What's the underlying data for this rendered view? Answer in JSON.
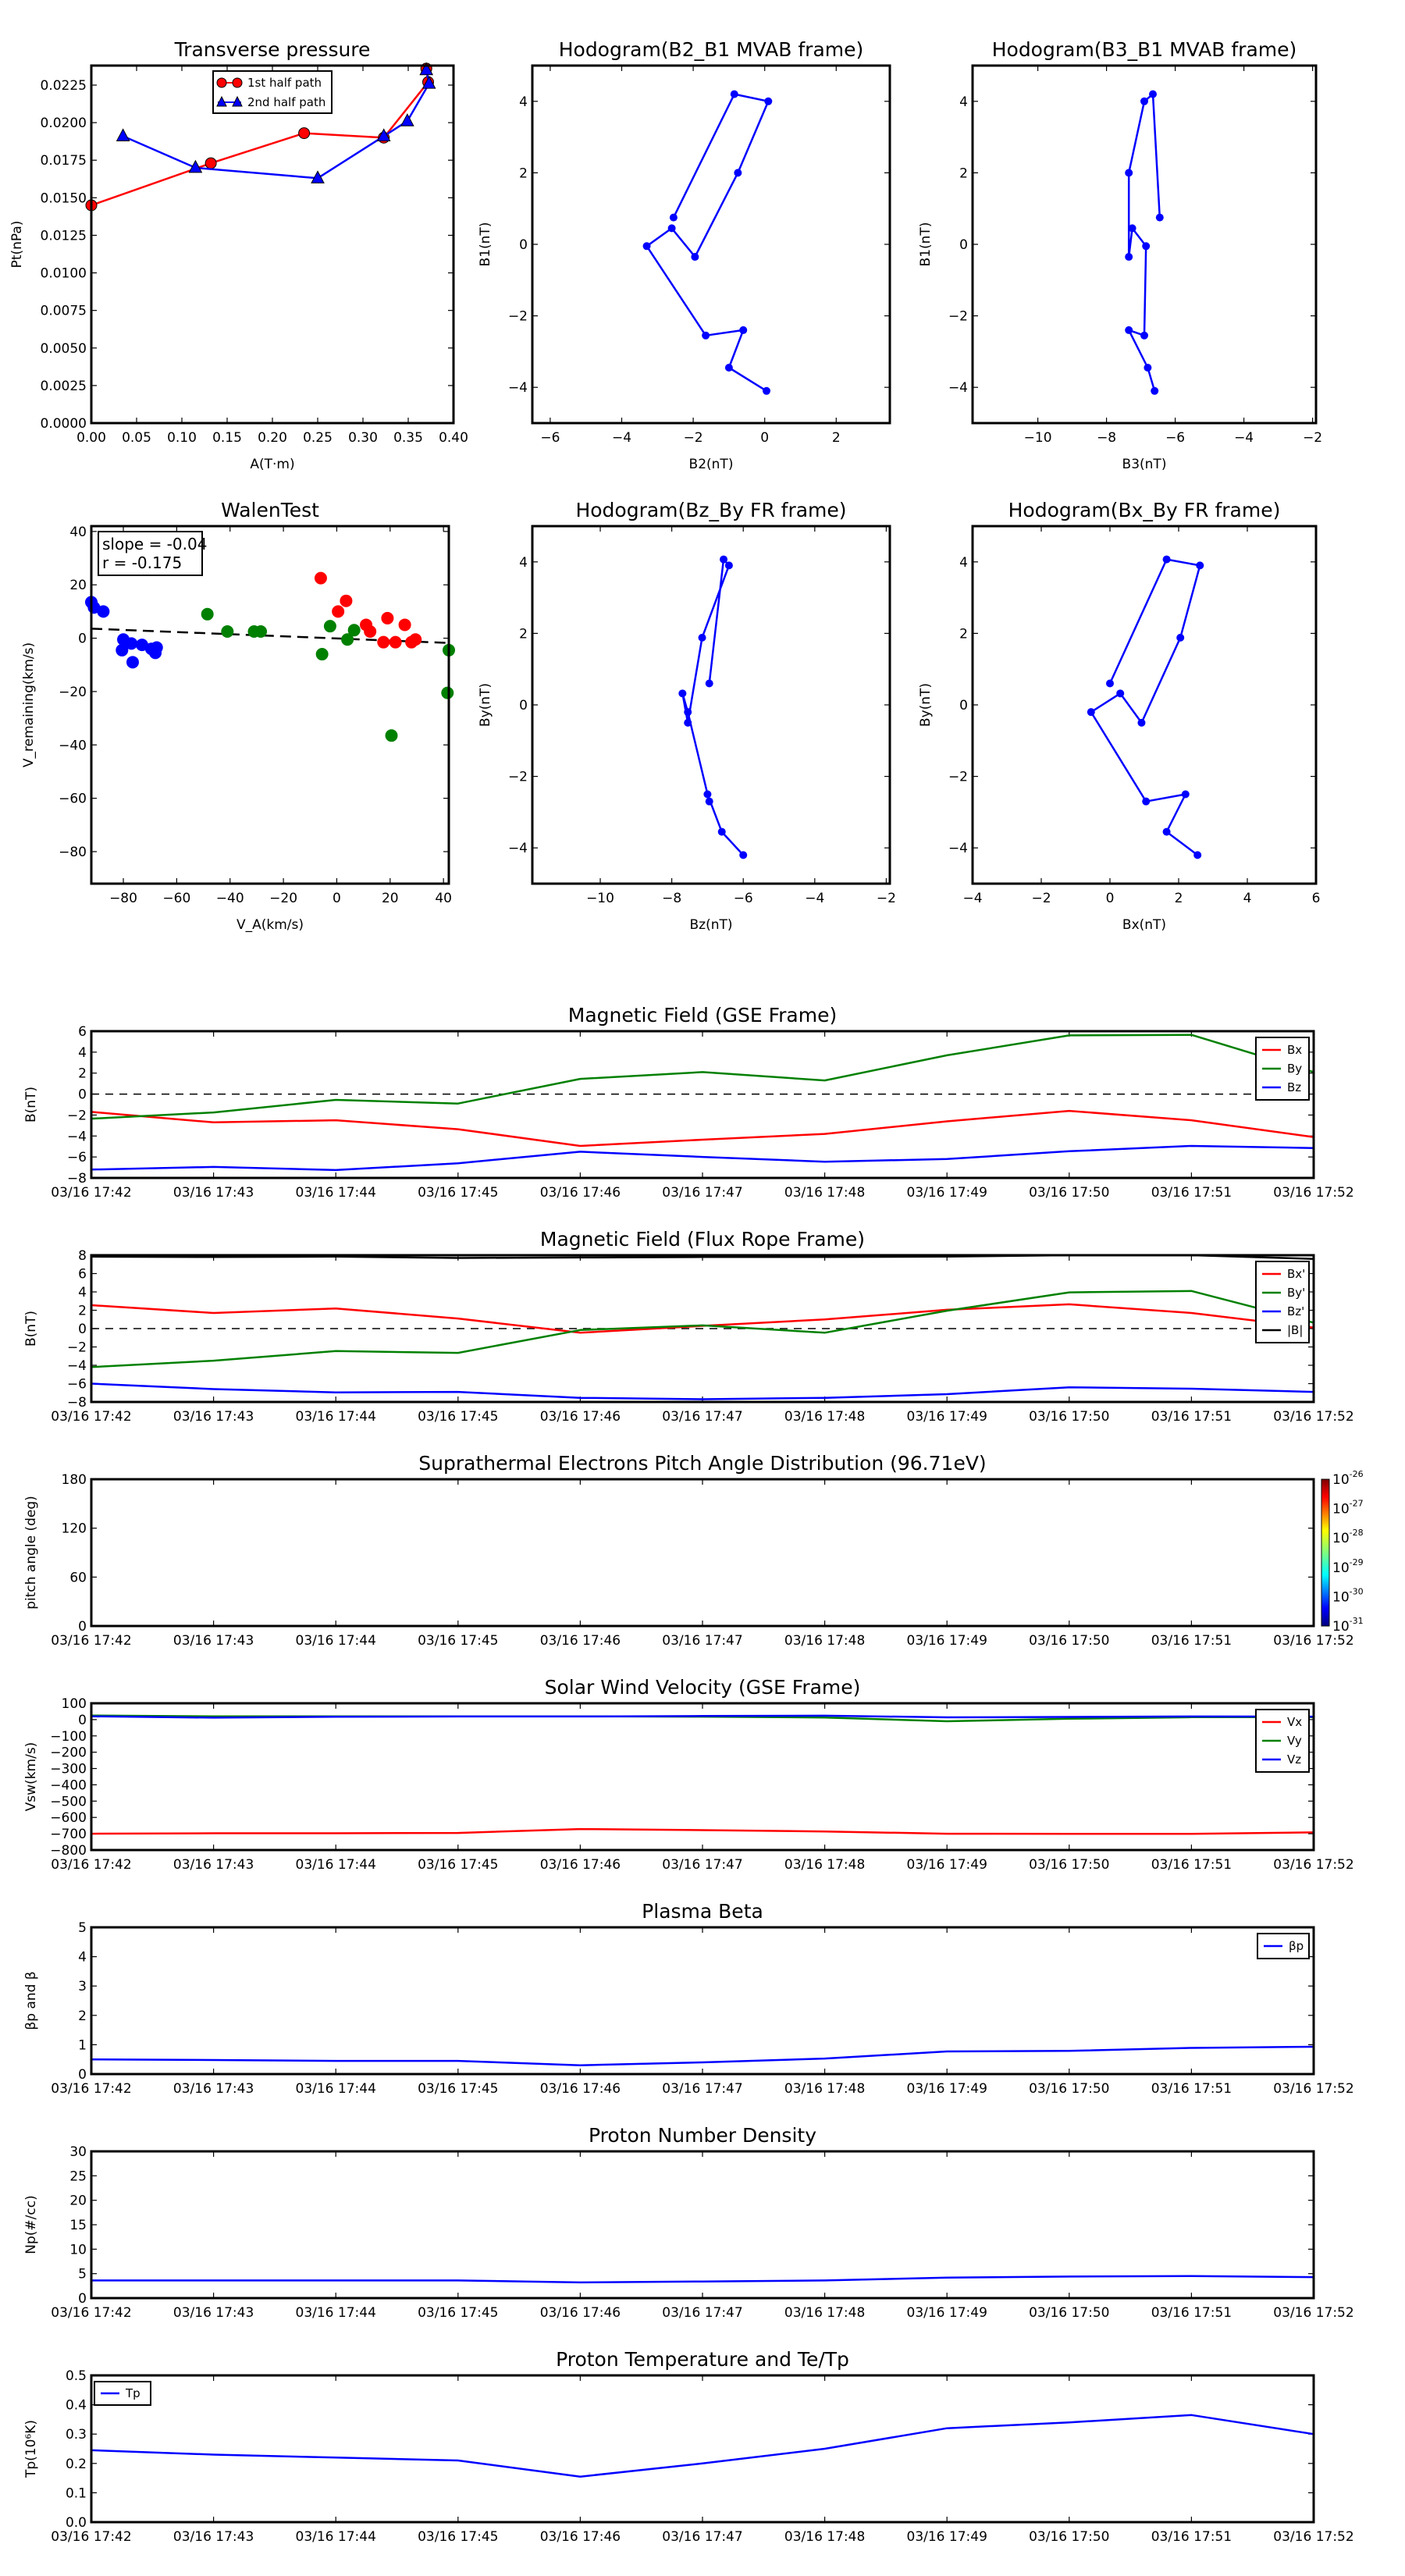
{
  "chart_data": [
    {
      "id": "transverse",
      "type": "line",
      "title": "Transverse pressure",
      "xlabel": "A(T·m)",
      "ylabel": "Pt(nPa)",
      "xlim": [
        0,
        0.4
      ],
      "ylim": [
        0,
        0.0238
      ],
      "xticks": [
        0.0,
        0.05,
        0.1,
        0.15,
        0.2,
        0.25,
        0.3,
        0.35,
        0.4
      ],
      "xtick_labels": [
        "0.00",
        "0.05",
        "0.10",
        "0.15",
        "0.20",
        "0.25",
        "0.30",
        "0.35",
        "0.40"
      ],
      "yticks": [
        0,
        0.0025,
        0.005,
        0.0075,
        0.01,
        0.0125,
        0.015,
        0.0175,
        0.02,
        0.0225
      ],
      "ytick_labels": [
        "0.0000",
        "0.0025",
        "0.0050",
        "0.0075",
        "0.0100",
        "0.0125",
        "0.0150",
        "0.0175",
        "0.0200",
        "0.0225"
      ],
      "legend_position": "top-center",
      "series": [
        {
          "name": "1st half path",
          "color": "#ff0000",
          "marker": "circle",
          "x": [
            0.0,
            0.132,
            0.235,
            0.323,
            0.372,
            0.37
          ],
          "y": [
            0.0145,
            0.0173,
            0.0193,
            0.019,
            0.0227,
            0.0236
          ]
        },
        {
          "name": "2nd half path",
          "color": "#0000ff",
          "marker": "triangle",
          "x": [
            0.035,
            0.115,
            0.25,
            0.323,
            0.349,
            0.373,
            0.37
          ],
          "y": [
            0.0191,
            0.017,
            0.0163,
            0.0191,
            0.0201,
            0.0226,
            0.0235
          ]
        }
      ]
    },
    {
      "id": "hodo_b2b1",
      "type": "line",
      "title": "Hodogram(B2_B1 MVAB frame)",
      "xlabel": "B2(nT)",
      "ylabel": "B1(nT)",
      "xlim": [
        -6.5,
        3.5
      ],
      "ylim": [
        -5,
        5
      ],
      "xticks": [
        -6,
        -4,
        -2,
        0,
        2
      ],
      "xtick_labels": [
        "−6",
        "−4",
        "−2",
        "0",
        "2"
      ],
      "yticks": [
        -4,
        -2,
        0,
        2,
        4
      ],
      "ytick_labels": [
        "−4",
        "−2",
        "0",
        "2",
        "4"
      ],
      "series": [
        {
          "name": "B2_B1",
          "color": "#0000ff",
          "marker": "dot",
          "x": [
            0.05,
            -1.0,
            -0.6,
            -1.65,
            -3.3,
            -2.6,
            -1.95,
            -0.75,
            0.1,
            -0.85,
            -2.55
          ],
          "y": [
            -4.1,
            -3.45,
            -2.4,
            -2.55,
            -0.05,
            0.45,
            -0.35,
            2.0,
            4.0,
            4.2,
            0.75
          ]
        }
      ]
    },
    {
      "id": "hodo_b3b1",
      "type": "line",
      "title": "Hodogram(B3_B1 MVAB frame)",
      "xlabel": "B3(nT)",
      "ylabel": "B1(nT)",
      "xlim": [
        -11.9,
        -1.9
      ],
      "ylim": [
        -5,
        5
      ],
      "xticks": [
        -10,
        -8,
        -6,
        -4,
        -2
      ],
      "xtick_labels": [
        "−10",
        "−8",
        "−6",
        "−4",
        "−2"
      ],
      "yticks": [
        -4,
        -2,
        0,
        2,
        4
      ],
      "ytick_labels": [
        "−4",
        "−2",
        "0",
        "2",
        "4"
      ],
      "series": [
        {
          "name": "B3_B1",
          "color": "#0000ff",
          "marker": "dot",
          "x": [
            -6.6,
            -6.8,
            -7.35,
            -6.9,
            -6.85,
            -7.25,
            -7.35,
            -7.35,
            -6.9,
            -6.65,
            -6.45
          ],
          "y": [
            -4.1,
            -3.45,
            -2.4,
            -2.55,
            -0.05,
            0.45,
            -0.35,
            2.0,
            4.0,
            4.2,
            0.75
          ]
        }
      ]
    },
    {
      "id": "walen",
      "type": "scatter",
      "title": "WalenTest",
      "xlabel": "V_A(km/s)",
      "ylabel": "V_remaining(km/s)",
      "xlim": [
        -92,
        42
      ],
      "ylim": [
        -92,
        42
      ],
      "xticks": [
        -80,
        -60,
        -40,
        -20,
        0,
        20,
        40
      ],
      "xtick_labels": [
        "−80",
        "−60",
        "−40",
        "−20",
        "0",
        "20",
        "40"
      ],
      "yticks": [
        -80,
        -60,
        -40,
        -20,
        0,
        20,
        40
      ],
      "ytick_labels": [
        "−80",
        "−60",
        "−40",
        "−20",
        "0",
        "20",
        "40"
      ],
      "annotation": {
        "slope": "slope = -0.04",
        "r": "r = -0.175"
      },
      "fit_line": {
        "slope": -0.04,
        "intercept": -0.1,
        "color": "#000000"
      },
      "series": [
        {
          "name": "blue",
          "color": "#0000ff",
          "x": [
            -92,
            -91,
            -87.5,
            -80.5,
            -80,
            -77,
            -76.5,
            -73,
            -69.5,
            -68,
            -67.5
          ],
          "y": [
            13.5,
            11.5,
            10,
            -4.5,
            -0.5,
            -2,
            -9,
            -2.5,
            -4,
            -5.5,
            -3.5
          ]
        },
        {
          "name": "green",
          "color": "#008000",
          "x": [
            -48.5,
            -41,
            -31,
            -28.5,
            -5.5,
            -2.5,
            4,
            6.5,
            20.5,
            41.5,
            42
          ],
          "y": [
            9,
            2.5,
            2.5,
            2.5,
            -6,
            4.5,
            -0.5,
            3,
            -36.5,
            -20.5,
            -4.5
          ]
        },
        {
          "name": "red",
          "color": "#ff0000",
          "x": [
            -6,
            0.5,
            3.5,
            11,
            12.5,
            17.5,
            19,
            22,
            25.5,
            28,
            29.5
          ],
          "y": [
            22.5,
            10,
            14,
            5,
            2.5,
            -1.5,
            7.5,
            -1.5,
            5,
            -1.5,
            -0.5
          ]
        }
      ]
    },
    {
      "id": "hodo_bzby",
      "type": "line",
      "title": "Hodogram(Bz_By FR frame)",
      "xlabel": "Bz(nT)",
      "ylabel": "By(nT)",
      "xlim": [
        -11.9,
        -1.9
      ],
      "ylim": [
        -5,
        5
      ],
      "xticks": [
        -10,
        -8,
        -6,
        -4,
        -2
      ],
      "xtick_labels": [
        "−10",
        "−8",
        "−6",
        "−4",
        "−2"
      ],
      "yticks": [
        -4,
        -2,
        0,
        2,
        4
      ],
      "ytick_labels": [
        "−4",
        "−2",
        "0",
        "2",
        "4"
      ],
      "series": [
        {
          "name": "Bz_By",
          "color": "#0000ff",
          "marker": "dot",
          "x": [
            -6.0,
            -6.6,
            -7.0,
            -6.95,
            -7.55,
            -7.7,
            -7.55,
            -7.15,
            -6.4,
            -6.55,
            -6.95
          ],
          "y": [
            -4.2,
            -3.55,
            -2.5,
            -2.7,
            -0.2,
            0.32,
            -0.5,
            1.88,
            3.9,
            4.07,
            0.6
          ]
        }
      ]
    },
    {
      "id": "hodo_bxby",
      "type": "line",
      "title": "Hodogram(Bx_By FR frame)",
      "xlabel": "Bx(nT)",
      "ylabel": "By(nT)",
      "xlim": [
        -4,
        6
      ],
      "ylim": [
        -5,
        5
      ],
      "xticks": [
        -4,
        -2,
        0,
        2,
        4,
        6
      ],
      "xtick_labels": [
        "−4",
        "−2",
        "0",
        "2",
        "4",
        "6"
      ],
      "yticks": [
        -4,
        -2,
        0,
        2,
        4
      ],
      "ytick_labels": [
        "−4",
        "−2",
        "0",
        "2",
        "4"
      ],
      "series": [
        {
          "name": "Bx_By",
          "color": "#0000ff",
          "marker": "dot",
          "x": [
            2.55,
            1.65,
            2.2,
            1.05,
            -0.55,
            0.3,
            0.92,
            2.05,
            2.62,
            1.65,
            0.0
          ],
          "y": [
            -4.2,
            -3.55,
            -2.5,
            -2.7,
            -0.2,
            0.32,
            -0.5,
            1.88,
            3.9,
            4.07,
            0.6
          ]
        }
      ]
    },
    {
      "id": "mag_gse",
      "type": "line",
      "title": "Magnetic Field (GSE Frame)",
      "ylabel": "B(nT)",
      "ylim": [
        -8,
        6
      ],
      "yticks": [
        -8,
        -6,
        -4,
        -2,
        0,
        2,
        4,
        6
      ],
      "ytick_labels": [
        "−8",
        "−6",
        "−4",
        "−2",
        "0",
        "2",
        "4",
        "6"
      ],
      "zero_line": true,
      "legend_position": "top-right",
      "series": [
        {
          "name": "Bx",
          "color": "#ff0000",
          "values": [
            -1.7,
            -2.7,
            -2.5,
            -3.35,
            -4.95,
            -4.35,
            -3.8,
            -2.6,
            -1.6,
            -2.5,
            -4.1
          ]
        },
        {
          "name": "By",
          "color": "#008000",
          "values": [
            -2.35,
            -1.75,
            -0.55,
            -0.9,
            1.45,
            2.1,
            1.3,
            3.7,
            5.6,
            5.65,
            2.1
          ]
        },
        {
          "name": "Bz",
          "color": "#0000ff",
          "values": [
            -7.2,
            -6.95,
            -7.25,
            -6.6,
            -5.5,
            -6.0,
            -6.45,
            -6.2,
            -5.45,
            -4.95,
            -5.15
          ]
        }
      ]
    },
    {
      "id": "mag_fr",
      "type": "line",
      "title": "Magnetic Field (Flux Rope Frame)",
      "ylabel": "B(nT)",
      "ylim": [
        -8,
        8
      ],
      "yticks": [
        -8,
        -6,
        -4,
        -2,
        0,
        2,
        4,
        6,
        8
      ],
      "ytick_labels": [
        "−8",
        "−6",
        "−4",
        "−2",
        "0",
        "2",
        "4",
        "6",
        "8"
      ],
      "zero_line": true,
      "legend_position": "top-right",
      "series": [
        {
          "name": "Bx'",
          "color": "#ff0000",
          "values": [
            2.55,
            1.7,
            2.2,
            1.1,
            -0.45,
            0.3,
            1.0,
            2.05,
            2.65,
            1.7,
            0.1
          ]
        },
        {
          "name": "By'",
          "color": "#008000",
          "values": [
            -4.2,
            -3.5,
            -2.45,
            -2.65,
            -0.15,
            0.35,
            -0.45,
            1.95,
            3.95,
            4.1,
            0.65
          ]
        },
        {
          "name": "Bz'",
          "color": "#0000ff",
          "values": [
            -6.0,
            -6.6,
            -6.95,
            -6.9,
            -7.55,
            -7.7,
            -7.55,
            -7.15,
            -6.4,
            -6.55,
            -6.9
          ]
        },
        {
          "name": "|B|",
          "color": "#000000",
          "values": [
            7.85,
            7.8,
            7.85,
            7.7,
            7.75,
            7.8,
            7.8,
            7.85,
            8.0,
            8.0,
            7.6
          ]
        }
      ]
    },
    {
      "id": "pad",
      "type": "heatmap",
      "title": "Suprathermal Electrons Pitch Angle Distribution (96.71eV)",
      "ylabel": "pitch angle (deg)",
      "ylim": [
        0,
        180
      ],
      "yticks": [
        0,
        60,
        120,
        180
      ],
      "ytick_labels": [
        "0",
        "60",
        "120",
        "180"
      ],
      "colorbar": {
        "ticks": [
          "10-31",
          "10-30",
          "10-29",
          "10-28",
          "10-27",
          "10-26"
        ],
        "mantissa": "10",
        "exponents": [
          "-31",
          "-30",
          "-29",
          "-28",
          "-27",
          "-26"
        ]
      },
      "series": []
    },
    {
      "id": "vsw",
      "type": "line",
      "title": "Solar Wind Velocity (GSE Frame)",
      "ylabel": "Vsw(km/s)",
      "ylim": [
        -800,
        100
      ],
      "yticks": [
        -800,
        -700,
        -600,
        -500,
        -400,
        -300,
        -200,
        -100,
        0,
        100
      ],
      "ytick_labels": [
        "−800",
        "−700",
        "−600",
        "−500",
        "−400",
        "−300",
        "−200",
        "−100",
        "0",
        "100"
      ],
      "legend_position": "top-right",
      "series": [
        {
          "name": "Vx",
          "color": "#ff0000",
          "values": [
            -700,
            -697,
            -697,
            -695,
            -671,
            -678,
            -686,
            -700,
            -701,
            -701,
            -692
          ]
        },
        {
          "name": "Vy",
          "color": "#008000",
          "values": [
            25,
            20,
            20,
            20,
            20,
            18,
            13,
            -10,
            5,
            15,
            15
          ]
        },
        {
          "name": "Vz",
          "color": "#0000ff",
          "values": [
            20,
            12,
            17,
            19,
            19,
            22,
            24,
            14,
            16,
            19,
            18
          ]
        }
      ]
    },
    {
      "id": "beta",
      "type": "line",
      "title": "Plasma Beta",
      "ylabel": "βp and β",
      "ylim": [
        0,
        5
      ],
      "yticks": [
        0,
        1,
        2,
        3,
        4,
        5
      ],
      "ytick_labels": [
        "0",
        "1",
        "2",
        "3",
        "4",
        "5"
      ],
      "legend_position": "top-right",
      "series": [
        {
          "name": "βp",
          "color": "#0000ff",
          "values": [
            0.5,
            0.48,
            0.45,
            0.45,
            0.3,
            0.4,
            0.53,
            0.77,
            0.79,
            0.89,
            0.93
          ]
        }
      ]
    },
    {
      "id": "np",
      "type": "line",
      "title": "Proton Number Density",
      "ylabel": "Np(#/cc)",
      "ylim": [
        0,
        30
      ],
      "yticks": [
        0,
        5,
        10,
        15,
        20,
        25,
        30
      ],
      "ytick_labels": [
        "0",
        "5",
        "10",
        "15",
        "20",
        "25",
        "30"
      ],
      "series": [
        {
          "name": "Np",
          "color": "#0000ff",
          "values": [
            3.6,
            3.6,
            3.6,
            3.6,
            3.2,
            3.4,
            3.6,
            4.2,
            4.4,
            4.5,
            4.3
          ]
        }
      ]
    },
    {
      "id": "tp",
      "type": "line",
      "title": "Proton Temperature and Te/Tp",
      "ylabel": "Tp(10⁶K)",
      "ylim": [
        0,
        0.5
      ],
      "yticks": [
        0,
        0.1,
        0.2,
        0.3,
        0.4,
        0.5
      ],
      "ytick_labels": [
        "0.0",
        "0.1",
        "0.2",
        "0.3",
        "0.4",
        "0.5"
      ],
      "legend_position": "top-left",
      "series": [
        {
          "name": "Tp",
          "color": "#0000ff",
          "values": [
            0.245,
            0.23,
            0.22,
            0.21,
            0.155,
            0.2,
            0.25,
            0.32,
            0.34,
            0.365,
            0.3
          ]
        }
      ]
    }
  ],
  "time_axis": {
    "labels": [
      "03/16 17:42",
      "03/16 17:43",
      "03/16 17:44",
      "03/16 17:45",
      "03/16 17:46",
      "03/16 17:47",
      "03/16 17:48",
      "03/16 17:49",
      "03/16 17:50",
      "03/16 17:51",
      "03/16 17:52"
    ]
  }
}
